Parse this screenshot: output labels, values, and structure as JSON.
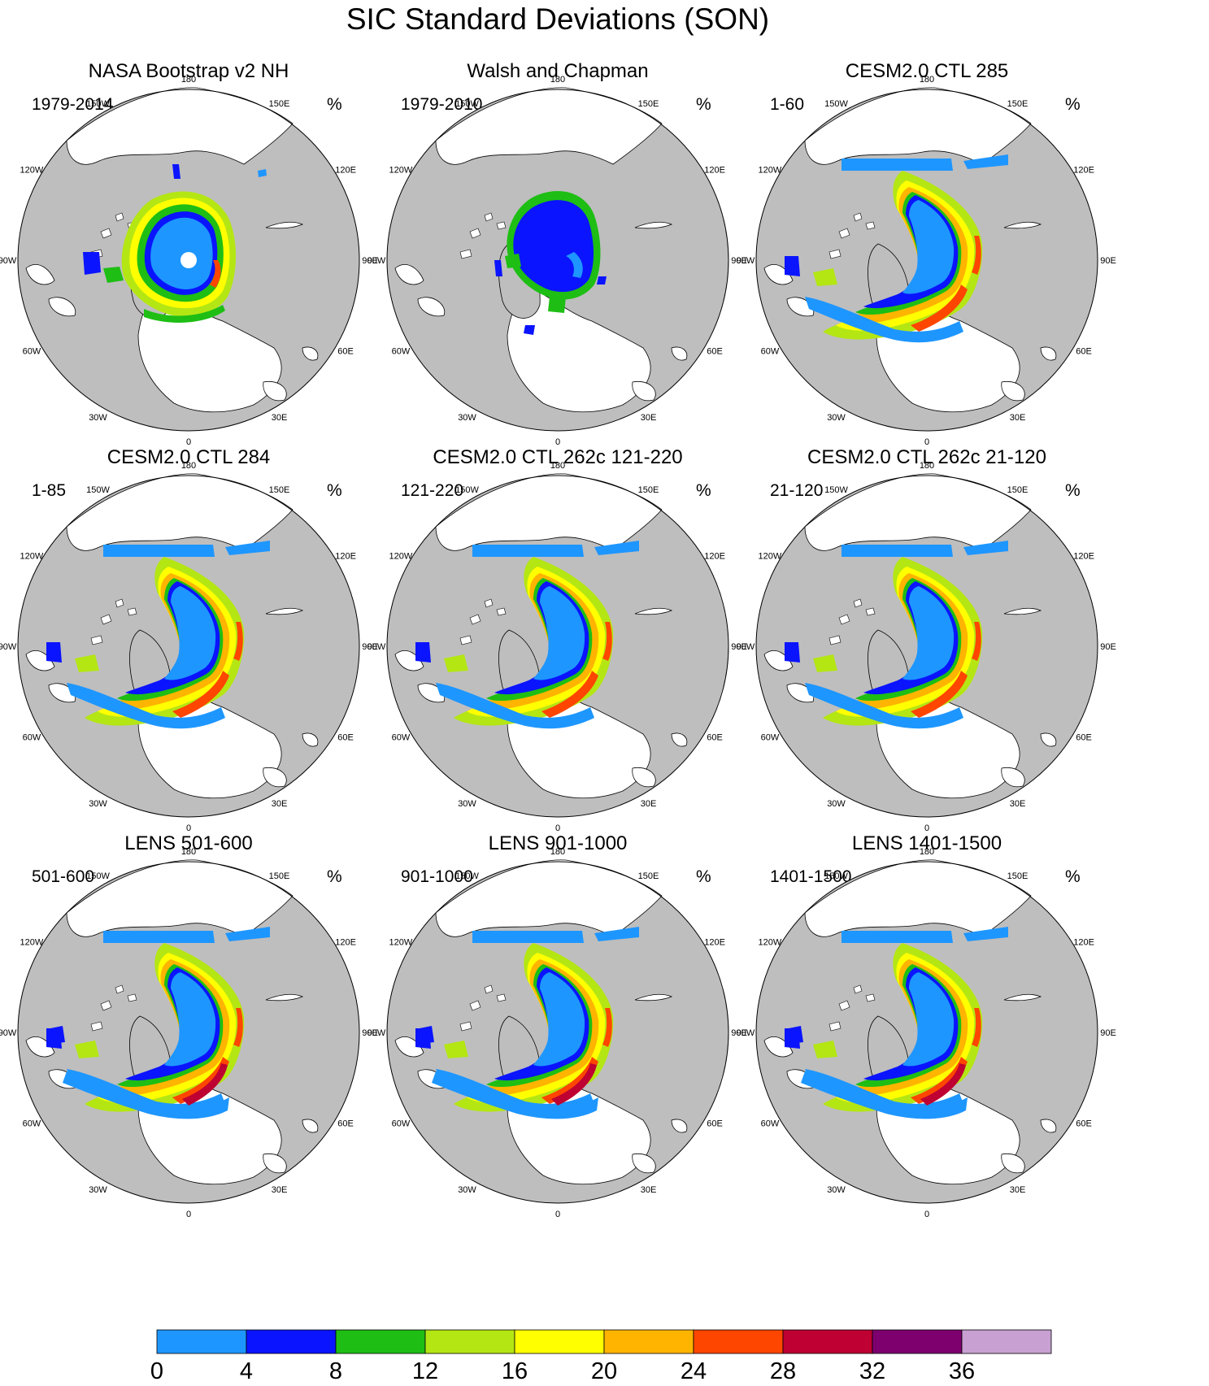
{
  "title": "SIC Standard Deviations (SON)",
  "units": "%",
  "lon_labels": [
    "180",
    "150E",
    "120E",
    "90E",
    "60E",
    "30E",
    "0",
    "30W",
    "60W",
    "90W",
    "120W",
    "150W"
  ],
  "panels": [
    {
      "title": "NASA Bootstrap v2 NH",
      "period": "1979-2014",
      "units": "%",
      "variant": "obs"
    },
    {
      "title": "Walsh and Chapman",
      "period": "1979-2010",
      "units": "%",
      "variant": "wc"
    },
    {
      "title": "CESM2.0 CTL 285",
      "period": "1-60",
      "units": "%",
      "variant": "model"
    },
    {
      "title": "CESM2.0 CTL 284",
      "period": "1-85",
      "units": "%",
      "variant": "model"
    },
    {
      "title": "CESM2.0 CTL 262c 121-220",
      "period": "121-220",
      "units": "%",
      "variant": "model"
    },
    {
      "title": "CESM2.0 CTL 262c 21-120",
      "period": "21-120",
      "units": "%",
      "variant": "model"
    },
    {
      "title": "LENS 501-600",
      "period": "501-600",
      "units": "%",
      "variant": "lens"
    },
    {
      "title": "LENS 901-1000",
      "period": "901-1000",
      "units": "%",
      "variant": "lens"
    },
    {
      "title": "LENS 1401-1500",
      "period": "1401-1500",
      "units": "%",
      "variant": "lens"
    }
  ],
  "colorbar": {
    "colors": [
      "#1e96ff",
      "#0a14ff",
      "#1ebe14",
      "#b4e614",
      "#ffff00",
      "#ffb400",
      "#ff4600",
      "#be0032",
      "#7d006e",
      "#c8a0d2"
    ],
    "labels": [
      "0",
      "4",
      "8",
      "12",
      "16",
      "20",
      "24",
      "28",
      "32",
      "36"
    ]
  },
  "colors": {
    "land": "#bebebe",
    "background": "#ffffff"
  }
}
